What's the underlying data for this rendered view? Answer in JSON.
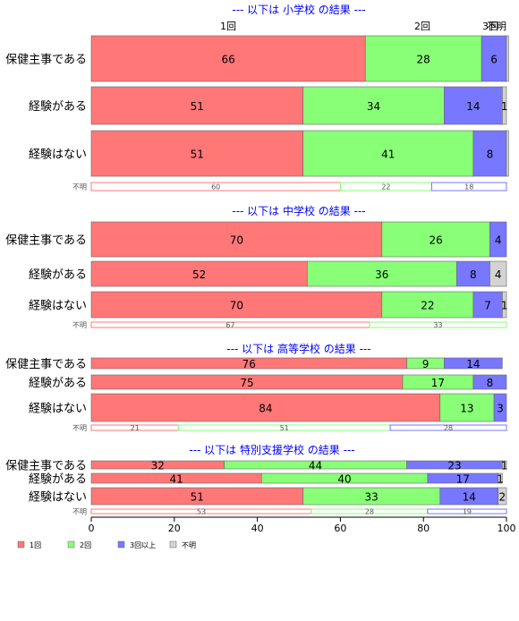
{
  "colors": {
    "1回": "#ff7777",
    "2回": "#88ff77",
    "3回以上": "#7777ff",
    "不明": "#d3d3d3",
    "title": "#0000ff"
  },
  "chart_data": {
    "type": "bar",
    "orientation": "horizontal",
    "stacked": true,
    "xlim": [
      0,
      100
    ],
    "x_ticks": [
      0,
      20,
      40,
      60,
      80,
      100
    ],
    "series_names": [
      "1回",
      "2回",
      "3回以上",
      "不明"
    ],
    "top_labels": [
      "1回",
      "2回",
      "3回",
      "不明"
    ],
    "legend": {
      "placement": "bottom-left",
      "labels": [
        "1回",
        "2回",
        "3回以上",
        "不明"
      ]
    },
    "panels": [
      {
        "title": "--- 以下は 小学校 の結果 ---",
        "rows": [
          {
            "label": "保健主事である",
            "values": [
              66,
              28,
              6,
              0.5
            ],
            "labels": [
              "66",
              "28",
              "6",
              ""
            ]
          },
          {
            "label": "経験がある",
            "values": [
              51,
              34,
              14,
              1
            ],
            "labels": [
              "51",
              "34",
              "14",
              "1"
            ]
          },
          {
            "label": "経験はない",
            "values": [
              51,
              41,
              8,
              0.5
            ],
            "labels": [
              "51",
              "41",
              "8",
              ""
            ]
          },
          {
            "label": "不明",
            "values": [
              60,
              22,
              18,
              0
            ],
            "labels": [
              "60",
              "22",
              "18",
              ""
            ],
            "small": true
          }
        ]
      },
      {
        "title": "--- 以下は 中学校 の結果 ---",
        "rows": [
          {
            "label": "保健主事である",
            "values": [
              70,
              26,
              4,
              0
            ],
            "labels": [
              "70",
              "26",
              "4",
              ""
            ]
          },
          {
            "label": "経験がある",
            "values": [
              52,
              36,
              8,
              4
            ],
            "labels": [
              "52",
              "36",
              "8",
              "4"
            ]
          },
          {
            "label": "経験はない",
            "values": [
              70,
              22,
              7,
              1
            ],
            "labels": [
              "70",
              "22",
              "7",
              "1"
            ]
          },
          {
            "label": "不明",
            "values": [
              67,
              33,
              0,
              0
            ],
            "labels": [
              "67",
              "33",
              "",
              ""
            ],
            "small": true
          }
        ]
      },
      {
        "title": "--- 以下は 高等学校 の結果 ---",
        "rows": [
          {
            "label": "保健主事である",
            "values": [
              76,
              9,
              14,
              0
            ],
            "labels": [
              "76",
              "9",
              "14",
              ""
            ]
          },
          {
            "label": "経験がある",
            "values": [
              75,
              17,
              8,
              0
            ],
            "labels": [
              "75",
              "17",
              "8",
              ""
            ]
          },
          {
            "label": "経験はない",
            "values": [
              84,
              13,
              3,
              0
            ],
            "labels": [
              "84",
              "13",
              "3",
              ""
            ]
          },
          {
            "label": "不明",
            "values": [
              21,
              51,
              28,
              0
            ],
            "labels": [
              "21",
              "51",
              "28",
              ""
            ],
            "small": true
          }
        ]
      },
      {
        "title": "--- 以下は 特別支援学校 の結果 ---",
        "rows": [
          {
            "label": "保健主事である",
            "values": [
              32,
              44,
              23,
              1
            ],
            "labels": [
              "32",
              "44",
              "23",
              "1"
            ]
          },
          {
            "label": "経験がある",
            "values": [
              41,
              40,
              17,
              1
            ],
            "labels": [
              "41",
              "40",
              "17",
              "1"
            ]
          },
          {
            "label": "経験はない",
            "values": [
              51,
              33,
              14,
              2
            ],
            "labels": [
              "51",
              "33",
              "14",
              "2"
            ]
          },
          {
            "label": "不明",
            "values": [
              53,
              28,
              19,
              0
            ],
            "labels": [
              "53",
              "28",
              "19",
              ""
            ],
            "small": true
          }
        ]
      }
    ]
  }
}
